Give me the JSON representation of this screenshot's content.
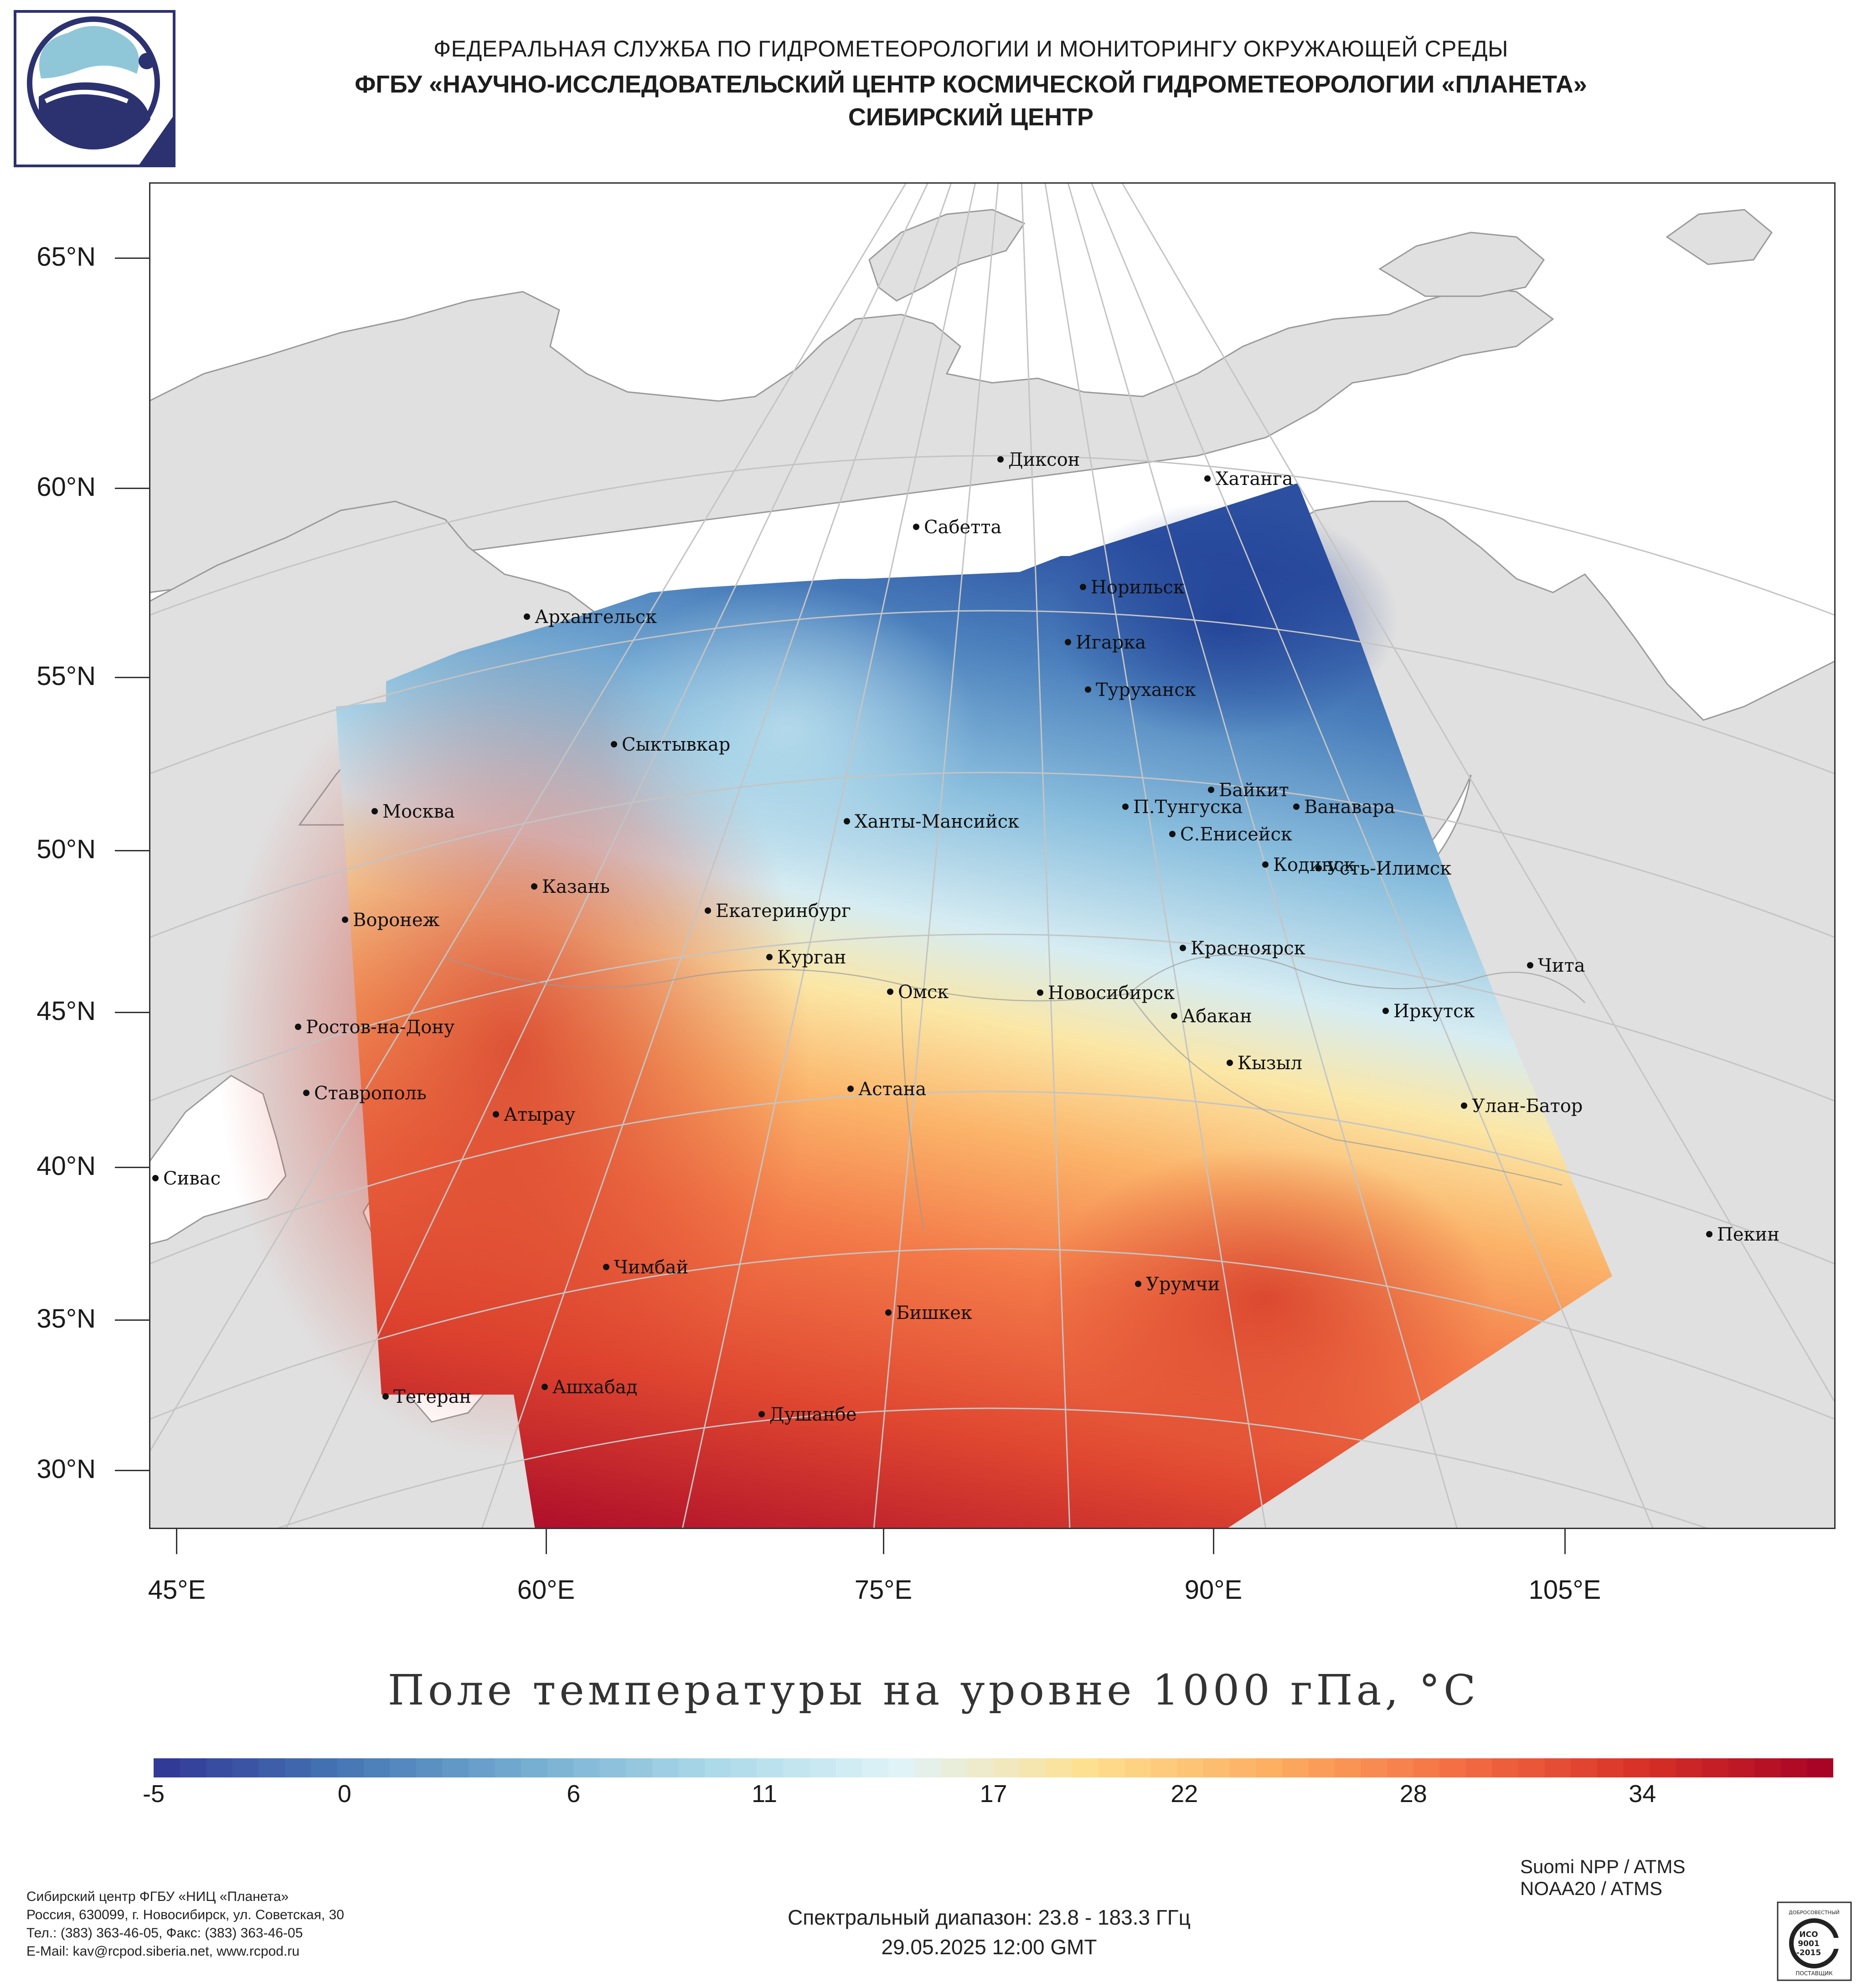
{
  "header": {
    "agency": "ФЕДЕРАЛЬНАЯ СЛУЖБА ПО ГИДРОМЕТЕОРОЛОГИИ И МОНИТОРИНГУ ОКРУЖАЮЩЕЙ СРЕДЫ",
    "institute": "ФГБУ «НАУЧНО-ИССЛЕДОВАТЕЛЬСКИЙ ЦЕНТР КОСМИЧЕСКОЙ ГИДРОМЕТЕОРОЛОГИИ «ПЛАНЕТА»",
    "center": "СИБИРСКИЙ ЦЕНТР"
  },
  "map": {
    "title": "Поле температуры на уровне 1000 гПа, °C",
    "lat_labels": [
      "65°N",
      "60°N",
      "55°N",
      "50°N",
      "45°N",
      "40°N",
      "35°N",
      "30°N"
    ],
    "lon_labels": [
      "45°E",
      "60°E",
      "75°E",
      "90°E",
      "105°E"
    ],
    "cities": [
      "Диксон",
      "Хатанга",
      "Сабетта",
      "Норильск",
      "Архангельск",
      "Игарка",
      "Туруханск",
      "Сыктывкар",
      "Байкит",
      "П.Тунгуска",
      "Ванавара",
      "Москва",
      "Ханты-Мансийск",
      "С.Енисейск",
      "Кодинск",
      "Усть-Илимск",
      "Казань",
      "Екатеринбург",
      "Воронеж",
      "Красноярск",
      "Курган",
      "Чита",
      "Омск",
      "Новосибирск",
      "Иркутск",
      "Ростов-на-Дону",
      "Абакан",
      "Кызыл",
      "Ставрополь",
      "Астана",
      "Улан-Батор",
      "Атырау",
      "Сивас",
      "Пекин",
      "Чимбай",
      "Урумчи",
      "Бишкек",
      "Ашхабад",
      "Тегеран",
      "Душанбе"
    ],
    "colors": {
      "land": "#e0e0e0",
      "water": "#ffffff",
      "coast": "#9a9a9a",
      "grid": "#c4c4c4"
    }
  },
  "colorbar": {
    "tick_labels": [
      "-5",
      "0",
      "6",
      "11",
      "17",
      "22",
      "28",
      "34"
    ],
    "min": -5,
    "max": 39,
    "ticks": [
      -5,
      0,
      6,
      11,
      17,
      22,
      28,
      34
    ],
    "colors": [
      "#313695",
      "#4575b4",
      "#74add1",
      "#abd9e9",
      "#e0f3f8",
      "#fee090",
      "#fdae61",
      "#f46d43",
      "#d73027",
      "#a50026"
    ]
  },
  "footer": {
    "org_lines": [
      "Сибирский центр ФГБУ «НИЦ «Планета»",
      "Россия, 630099, г. Новосибирск, ул. Советская, 30",
      "Тел.: (383) 363-46-05, Факс: (383) 363-46-05",
      "E-Mail: kav@rcpod.siberia.net, www.rcpod.ru"
    ],
    "satellites": [
      "Suomi NPP / ATMS",
      "NOAA20 / ATMS"
    ],
    "spectral": "Спектральный диапазон: 23.8 - 183.3 ГГц",
    "datetime": "29.05.2025 12:00 GMT",
    "iso_badge": {
      "top": "ДОБРОСОВЕСТНЫЙ",
      "mid1": "ИСО",
      "mid2": "9001",
      "mid3": "-2015",
      "bottom": "ПОСТАВЩИК"
    }
  }
}
